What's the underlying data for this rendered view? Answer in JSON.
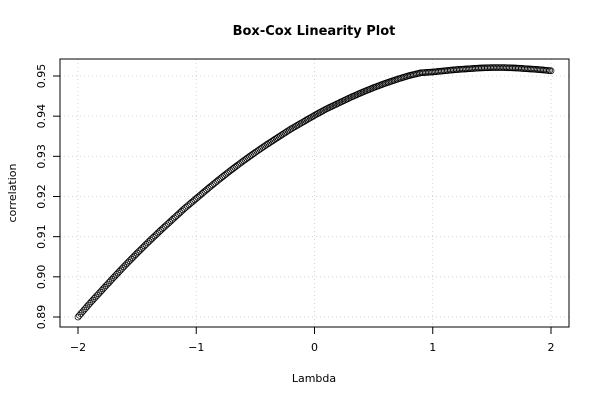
{
  "chart_data": {
    "type": "scatter",
    "title": "Box-Cox Linearity Plot",
    "xlabel": "Lambda",
    "ylabel": "correlation",
    "xlim": [
      -2.0,
      2.0
    ],
    "ylim": [
      0.889,
      0.954
    ],
    "x_ticks": [
      -2,
      -1,
      0,
      1,
      2
    ],
    "y_ticks": [
      0.89,
      0.9,
      0.91,
      0.92,
      0.93,
      0.94,
      0.95
    ],
    "x_tick_labels": [
      "−2",
      "−1",
      "0",
      "1",
      "2"
    ],
    "y_tick_labels": [
      "0.89",
      "0.90",
      "0.91",
      "0.92",
      "0.93",
      "0.94",
      "0.95"
    ],
    "grid": true,
    "series": [
      {
        "marker": "open-circle",
        "x": [
          -2.0,
          -1.9,
          -1.8,
          -1.7,
          -1.6,
          -1.5,
          -1.4,
          -1.3,
          -1.2,
          -1.1,
          -1.0,
          -0.9,
          -0.8,
          -0.7,
          -0.6,
          -0.5,
          -0.4,
          -0.3,
          -0.2,
          -0.1,
          0.0,
          0.1,
          0.2,
          0.3,
          0.4,
          0.5,
          0.6,
          0.7,
          0.8,
          0.9,
          1.0,
          1.1,
          1.2,
          1.3,
          1.4,
          1.5,
          1.6,
          1.7,
          1.8,
          1.9,
          2.0
        ],
        "y": [
          0.89,
          0.8934,
          0.8966,
          0.8998,
          0.9029,
          0.9059,
          0.9088,
          0.9116,
          0.9143,
          0.917,
          0.9195,
          0.922,
          0.9244,
          0.9267,
          0.9289,
          0.931,
          0.933,
          0.9349,
          0.9368,
          0.9385,
          0.9402,
          0.9418,
          0.9432,
          0.9446,
          0.9459,
          0.9471,
          0.9482,
          0.9492,
          0.9501,
          0.9508,
          0.951,
          0.9513,
          0.9516,
          0.9518,
          0.952,
          0.9521,
          0.9521,
          0.952,
          0.9518,
          0.9516,
          0.9513
        ]
      }
    ]
  }
}
